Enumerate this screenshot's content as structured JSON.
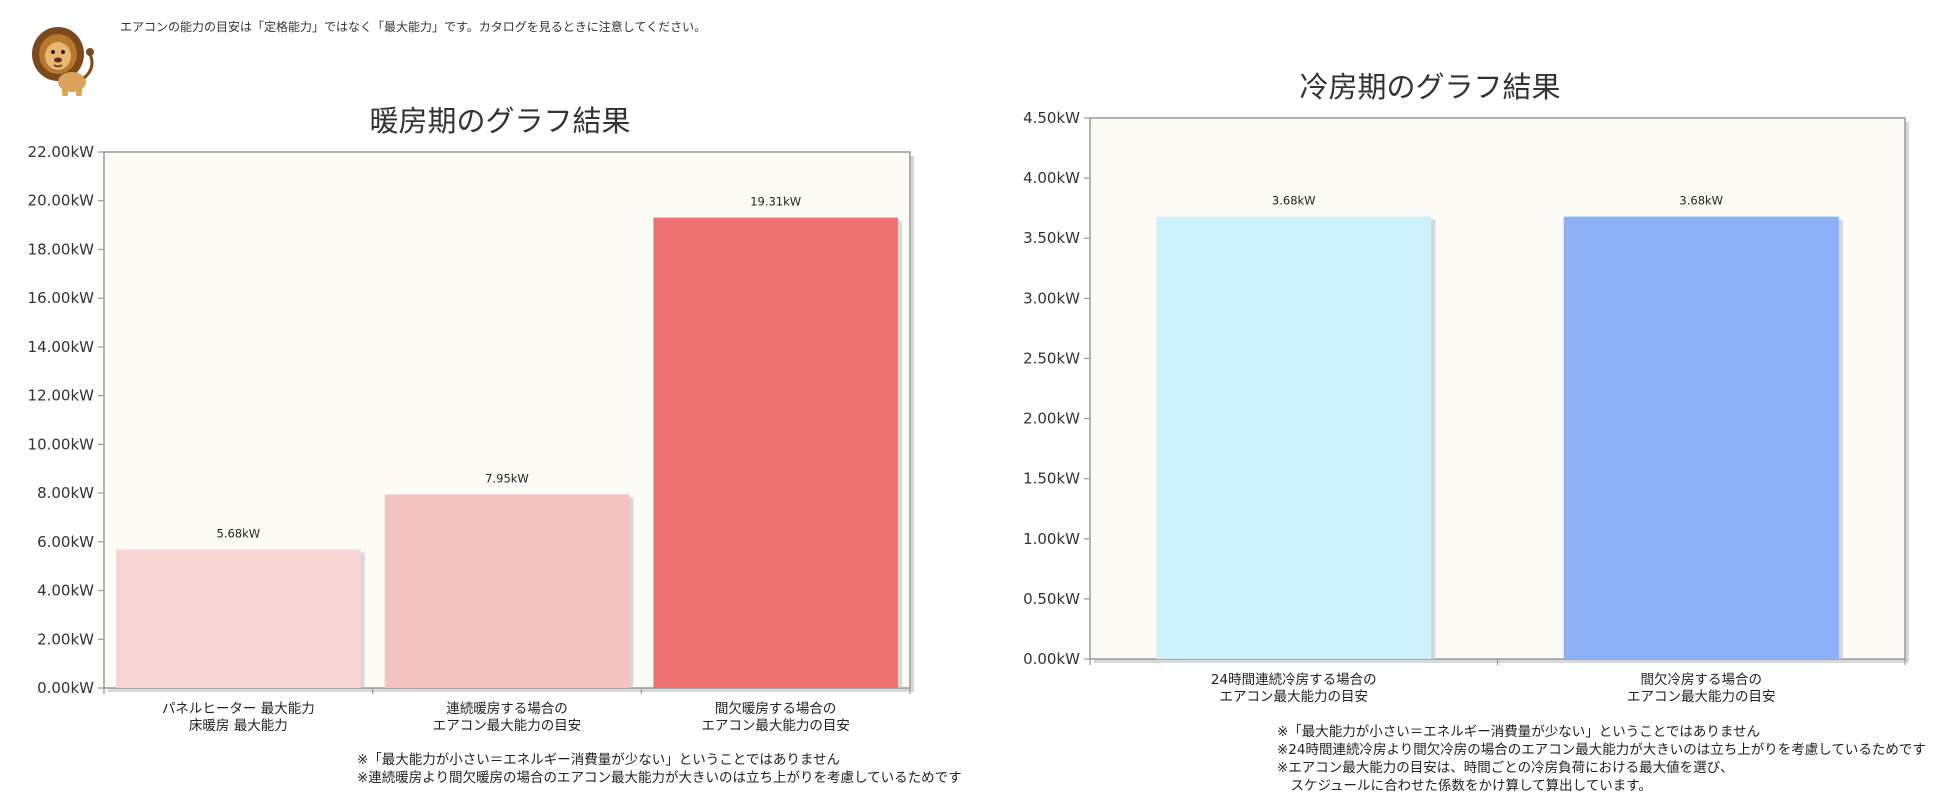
{
  "header": {
    "notice": "エアコンの能力の目安は「定格能力」ではなく「最大能力」です。カタログを見るときに注意してください。"
  },
  "mascot": {
    "icon": "lion-icon"
  },
  "colors": {
    "plot_bg": "#fcfbf5",
    "axis": "#999999",
    "heat_1": "#f6d4d3",
    "heat_2": "#f3c2c1",
    "heat_3": "#ec7170",
    "cool_1": "#ccf1fa",
    "cool_2": "#8db0f7"
  },
  "chart_data": [
    {
      "type": "bar",
      "title": "暖房期のグラフ結果",
      "categories": [
        [
          "パネルヒーター 最大能力",
          "床暖房 最大能力"
        ],
        [
          "連続暖房する場合の",
          "エアコン最大能力の目安"
        ],
        [
          "間欠暖房する場合の",
          "エアコン最大能力の目安"
        ]
      ],
      "values": [
        5.68,
        7.95,
        19.31
      ],
      "value_labels": [
        "5.68kW",
        "7.95kW",
        "19.31kW"
      ],
      "bar_colors": [
        "#f6d4d3",
        "#f3c2c1",
        "#ec7170"
      ],
      "ylim": [
        0,
        22
      ],
      "yticks": [
        "0.00kW",
        "2.00kW",
        "4.00kW",
        "6.00kW",
        "8.00kW",
        "10.00kW",
        "12.00kW",
        "14.00kW",
        "16.00kW",
        "18.00kW",
        "20.00kW",
        "22.00kW"
      ],
      "xlabel": "",
      "ylabel": "",
      "grid": false,
      "notes": [
        "※「最大能力が小さい＝エネルギー消費量が少ない」ということではありません",
        "※連続暖房より間欠暖房の場合のエアコン最大能力が大きいのは立ち上がりを考慮しているためです"
      ]
    },
    {
      "type": "bar",
      "title": "冷房期のグラフ結果",
      "categories": [
        [
          "24時間連続冷房する場合の",
          "エアコン最大能力の目安"
        ],
        [
          "間欠冷房する場合の",
          "エアコン最大能力の目安"
        ]
      ],
      "values": [
        3.68,
        3.68
      ],
      "value_labels": [
        "3.68kW",
        "3.68kW"
      ],
      "bar_colors": [
        "#ccf1fa",
        "#8db0f7"
      ],
      "ylim": [
        0,
        4.5
      ],
      "yticks": [
        "0.00kW",
        "0.50kW",
        "1.00kW",
        "1.50kW",
        "2.00kW",
        "2.50kW",
        "3.00kW",
        "3.50kW",
        "4.00kW",
        "4.50kW"
      ],
      "xlabel": "",
      "ylabel": "",
      "grid": false,
      "notes": [
        "※「最大能力が小さい＝エネルギー消費量が少ない」ということではありません",
        "※24時間連続冷房より間欠冷房の場合のエアコン最大能力が大きいのは立ち上がりを考慮しているためです",
        "※エアコン最大能力の目安は、時間ごとの冷房負荷における最大値を選び、",
        "　スケジュールに合わせた係数をかけ算して算出しています。"
      ]
    }
  ]
}
